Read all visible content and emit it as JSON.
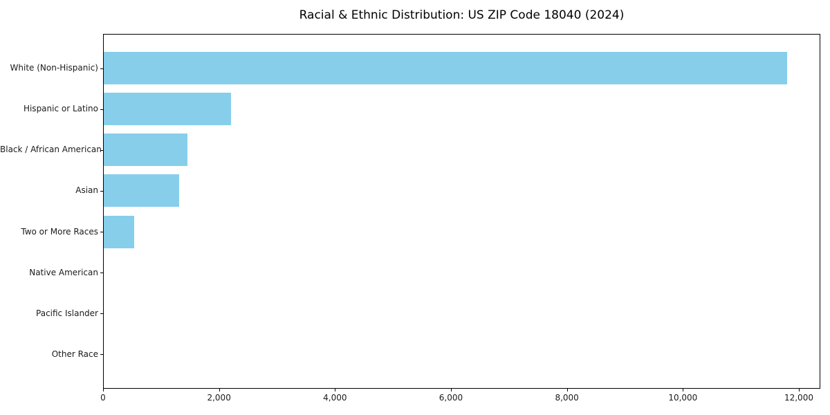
{
  "chart_data": {
    "type": "bar",
    "orientation": "horizontal",
    "title": "Racial & Ethnic Distribution: US ZIP Code 18040 (2024)",
    "categories": [
      "White (Non-Hispanic)",
      "Hispanic or Latino",
      "Black / African American",
      "Asian",
      "Two or More Races",
      "Native American",
      "Pacific Islander",
      "Other Race"
    ],
    "values": [
      11780,
      2200,
      1440,
      1300,
      530,
      0,
      0,
      0
    ],
    "xlabel": "",
    "ylabel": "",
    "xlim": [
      0,
      12370
    ],
    "xticks": [
      0,
      2000,
      4000,
      6000,
      8000,
      10000,
      12000
    ],
    "xtick_labels": [
      "0",
      "2,000",
      "4,000",
      "6,000",
      "8,000",
      "10,000",
      "12,000"
    ],
    "grid": false,
    "legend_position": "none",
    "colors": {
      "bar": "#87CEEB",
      "text": "#000000",
      "tick_text": "#1a1a1a",
      "spine": "#000000",
      "background": "#ffffff"
    }
  }
}
